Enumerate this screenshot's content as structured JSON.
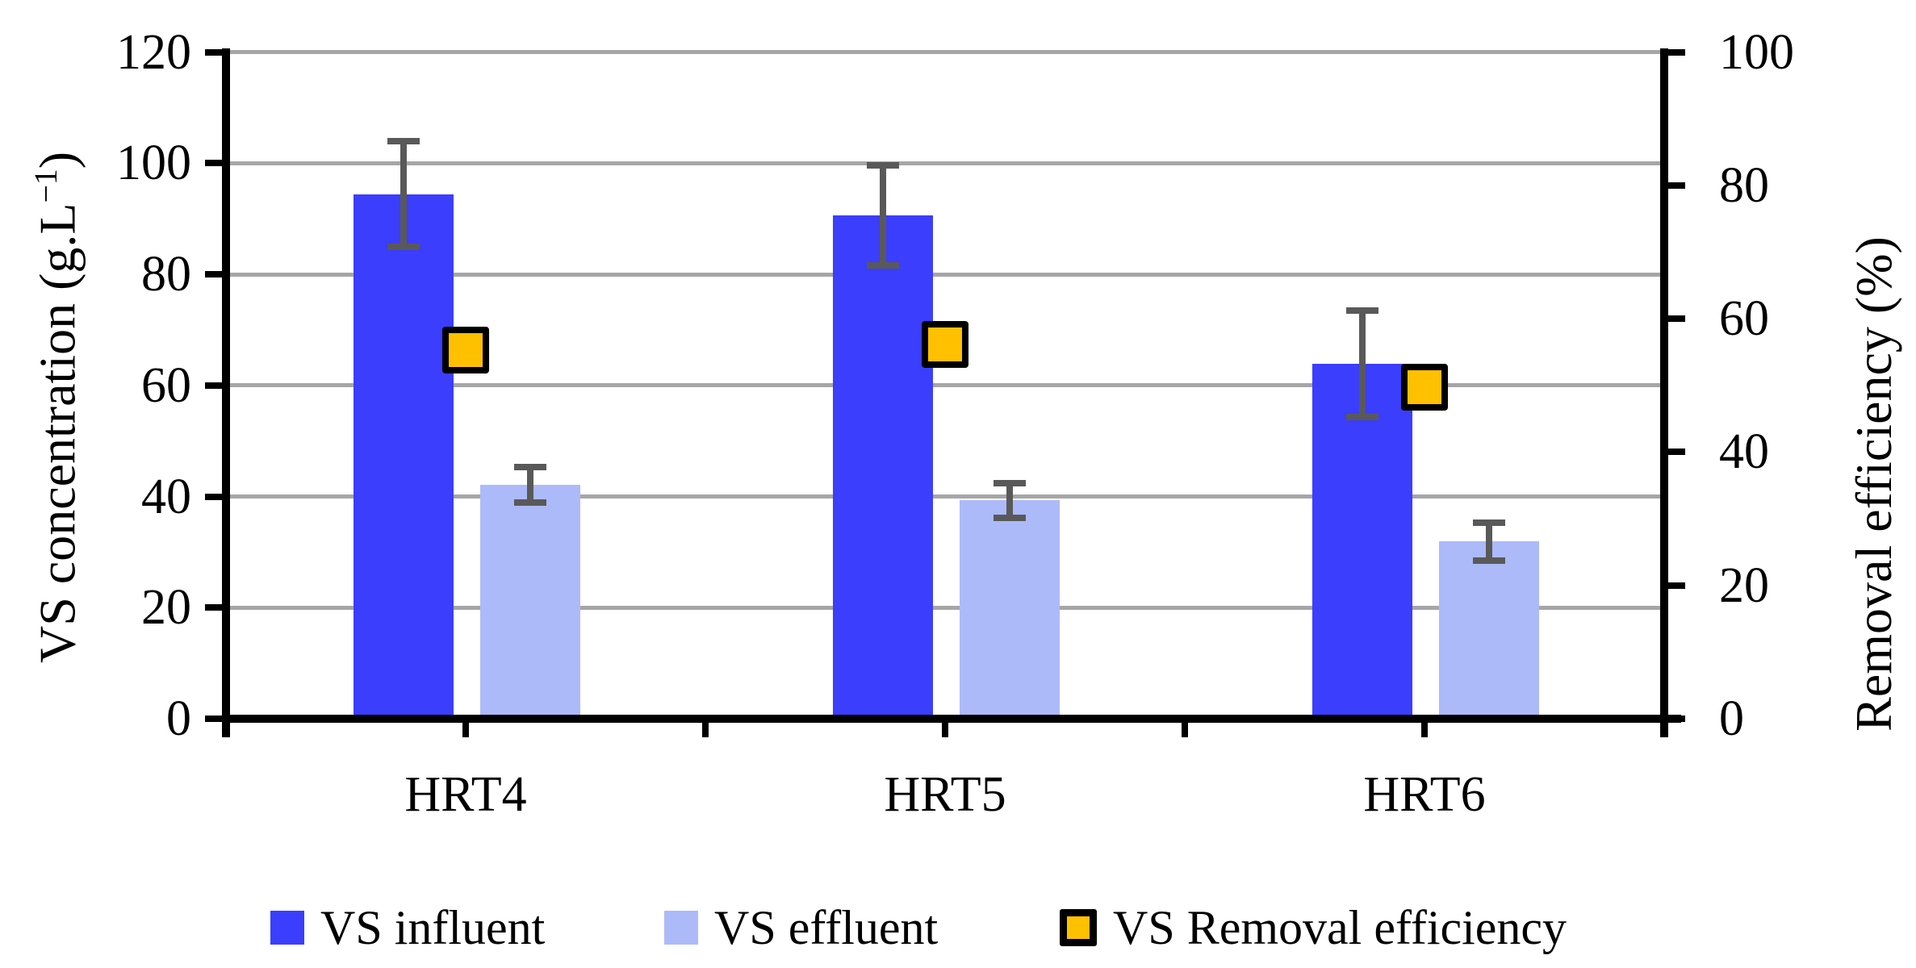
{
  "figure": {
    "background": "#FFFFFF"
  },
  "chart_data": {
    "type": "bar",
    "title": "",
    "categories": [
      "HRT4",
      "HRT5",
      "HRT6"
    ],
    "series": [
      {
        "name": "VS influent",
        "type": "bar",
        "axis": "left",
        "color": "#3B3EFC",
        "values": [
          94.4,
          90.6,
          63.9
        ],
        "errors": [
          9.5,
          9.0,
          9.6
        ]
      },
      {
        "name": "VS effluent",
        "type": "bar",
        "axis": "left",
        "color": "#ADBAF9",
        "values": [
          42.1,
          39.3,
          31.9
        ],
        "errors": [
          3.2,
          3.1,
          3.4
        ]
      },
      {
        "name": "VS Removal efficiency",
        "type": "square-marker",
        "axis": "right",
        "color": "#FFC000",
        "border_color": "#000000",
        "values": [
          55.3,
          56.2,
          49.7
        ]
      }
    ],
    "left_axis": {
      "title_main": "VS concentration (g.L",
      "title_sup": "−1",
      "title_end": ")",
      "min": 0,
      "max": 120,
      "step": 20,
      "tick_labels": [
        "0",
        "20",
        "40",
        "60",
        "80",
        "100",
        "120"
      ]
    },
    "right_axis": {
      "title": "Removal efficiency (%)",
      "min": 0,
      "max": 100,
      "step": 20,
      "tick_labels": [
        "0",
        "20",
        "40",
        "60",
        "80",
        "100"
      ]
    },
    "grid": {
      "on": true,
      "color": "#A6A6A6"
    },
    "error_bar_color": "#595959",
    "axis_color": "#000000",
    "legend_position": "bottom"
  }
}
